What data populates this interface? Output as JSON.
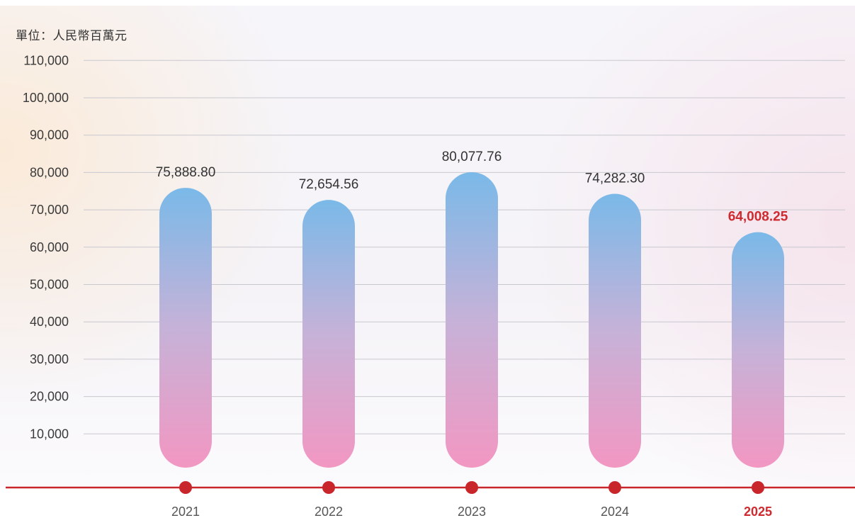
{
  "chart_data": {
    "type": "bar",
    "unit_label": "單位：人民幣百萬元",
    "categories": [
      "2021",
      "2022",
      "2023",
      "2024",
      "2025"
    ],
    "values": [
      75888.8,
      72654.56,
      80077.76,
      74282.3,
      64008.25
    ],
    "value_labels": [
      "75,888.80",
      "72,654.56",
      "80,077.76",
      "74,282.30",
      "64,008.25"
    ],
    "highlight_index": 4,
    "y_ticks": [
      "10,000",
      "20,000",
      "30,000",
      "40,000",
      "50,000",
      "60,000",
      "70,000",
      "80,000",
      "90,000",
      "100,000",
      "110,000"
    ],
    "y_tick_values": [
      10000,
      20000,
      30000,
      40000,
      50000,
      60000,
      70000,
      80000,
      90000,
      100000,
      110000
    ],
    "ylim": [
      0,
      110000
    ],
    "grid": true,
    "colors": {
      "bar_top": "#7ab9e8",
      "bar_mid": "#c6b2d8",
      "bar_bottom": "#f297c2",
      "axis_line": "#c9262c",
      "highlight": "#cf2a2f",
      "grid": "#c8c8cf"
    }
  }
}
